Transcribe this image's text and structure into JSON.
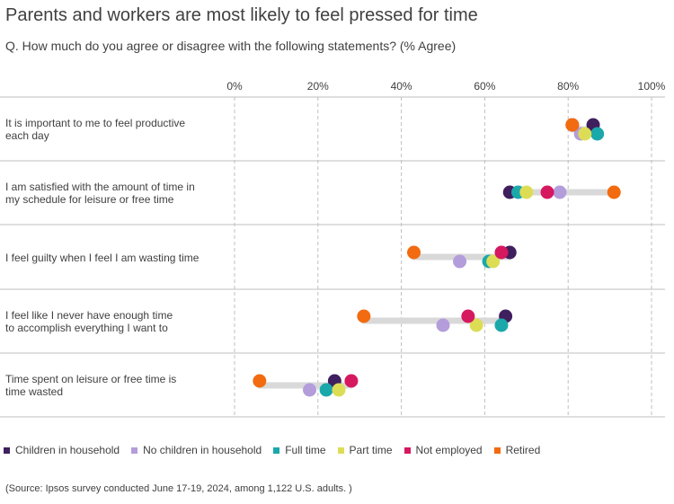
{
  "title": "Parents and workers are most likely to feel pressed for time",
  "subtitle": "Q. How much do you agree or disagree with the following statements? (% Agree)",
  "source": "(Source: Ipsos survey conducted June 17-19, 2024, among 1,122 U.S. adults. )",
  "chart_data": {
    "type": "scatter",
    "subtype": "dot-plot",
    "xlim": [
      0,
      100
    ],
    "ticks": [
      "0%",
      "20%",
      "40%",
      "60%",
      "80%",
      "100%"
    ],
    "grid": true,
    "legend_position": "bottom",
    "categories": [
      {
        "line1": "It is important to me to feel productive",
        "line2": "each day"
      },
      {
        "line1": "I am satisfied with the amount of time in",
        "line2": "my schedule for leisure or free time"
      },
      {
        "line1": "I feel guilty when I feel I am wasting time",
        "line2": ""
      },
      {
        "line1": "I feel like I never have enough time",
        "line2": "to accomplish everything I want to"
      },
      {
        "line1": "Time spent on leisure or free time is",
        "line2": "time wasted"
      }
    ],
    "series": [
      {
        "name": "Children in household",
        "color": "#3f1f5e",
        "values": [
          86,
          66,
          66,
          65,
          24
        ]
      },
      {
        "name": "No children in household",
        "color": "#b39ddb",
        "values": [
          83,
          78,
          54,
          50,
          18
        ]
      },
      {
        "name": "Full time",
        "color": "#1aa8aa",
        "values": [
          87,
          68,
          61,
          64,
          22
        ]
      },
      {
        "name": "Part time",
        "color": "#dddd55",
        "values": [
          84,
          70,
          62,
          58,
          25
        ]
      },
      {
        "name": "Not employed",
        "color": "#d6185f",
        "values": [
          81,
          75,
          64,
          56,
          28
        ]
      },
      {
        "name": "Retired",
        "color": "#f26b10",
        "values": [
          81,
          91,
          43,
          31,
          6
        ]
      }
    ]
  }
}
